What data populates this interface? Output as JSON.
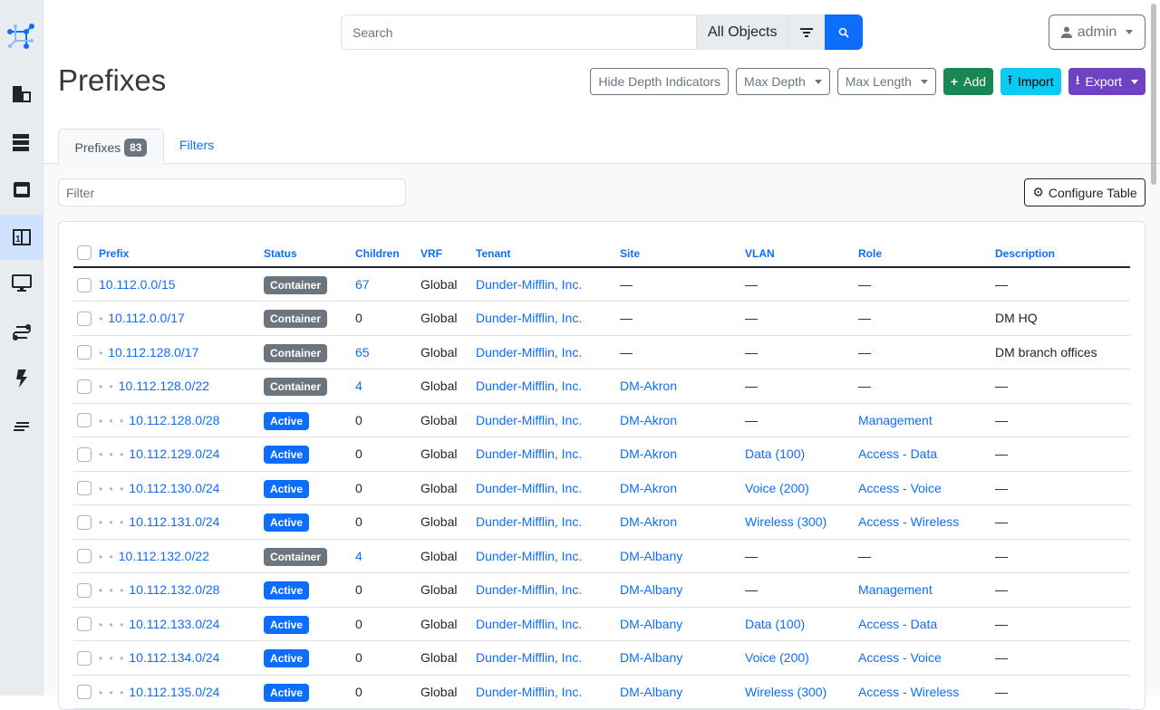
{
  "search": {
    "placeholder": "Search",
    "scope": "All Objects"
  },
  "user": {
    "name": "admin"
  },
  "page": {
    "title": "Prefixes"
  },
  "actions": {
    "hide_depth": "Hide Depth Indicators",
    "max_depth": "Max Depth",
    "max_length": "Max Length",
    "add": "Add",
    "import": "Import",
    "export": "Export"
  },
  "colors": {
    "add": "#198754",
    "import": "#0dcaf0",
    "export": "#6f42c1",
    "active": "#0d6efd",
    "container": "#6c757d"
  },
  "tabs": {
    "prefixes": "Prefixes",
    "count": "83",
    "filters": "Filters"
  },
  "filter": {
    "placeholder": "Filter"
  },
  "configure": "Configure Table",
  "table": {
    "headers": [
      "Prefix",
      "Status",
      "Children",
      "VRF",
      "Tenant",
      "Site",
      "VLAN",
      "Role",
      "Description"
    ],
    "rows": [
      {
        "depth": 0,
        "prefix": "10.112.0.0/15",
        "status": "Container",
        "children": "67",
        "vrf": "Global",
        "tenant": "Dunder-Mifflin, Inc.",
        "site": "—",
        "vlan": "—",
        "role": "—",
        "description": "—"
      },
      {
        "depth": 1,
        "prefix": "10.112.0.0/17",
        "status": "Container",
        "children": "0",
        "vrf": "Global",
        "tenant": "Dunder-Mifflin, Inc.",
        "site": "—",
        "vlan": "—",
        "role": "—",
        "description": "DM HQ"
      },
      {
        "depth": 1,
        "prefix": "10.112.128.0/17",
        "status": "Container",
        "children": "65",
        "vrf": "Global",
        "tenant": "Dunder-Mifflin, Inc.",
        "site": "—",
        "vlan": "—",
        "role": "—",
        "description": "DM branch offices"
      },
      {
        "depth": 2,
        "prefix": "10.112.128.0/22",
        "status": "Container",
        "children": "4",
        "vrf": "Global",
        "tenant": "Dunder-Mifflin, Inc.",
        "site": "DM-Akron",
        "vlan": "—",
        "role": "—",
        "description": "—"
      },
      {
        "depth": 3,
        "prefix": "10.112.128.0/28",
        "status": "Active",
        "children": "0",
        "vrf": "Global",
        "tenant": "Dunder-Mifflin, Inc.",
        "site": "DM-Akron",
        "vlan": "—",
        "role": "Management",
        "description": "—"
      },
      {
        "depth": 3,
        "prefix": "10.112.129.0/24",
        "status": "Active",
        "children": "0",
        "vrf": "Global",
        "tenant": "Dunder-Mifflin, Inc.",
        "site": "DM-Akron",
        "vlan": "Data (100)",
        "role": "Access - Data",
        "description": "—"
      },
      {
        "depth": 3,
        "prefix": "10.112.130.0/24",
        "status": "Active",
        "children": "0",
        "vrf": "Global",
        "tenant": "Dunder-Mifflin, Inc.",
        "site": "DM-Akron",
        "vlan": "Voice (200)",
        "role": "Access - Voice",
        "description": "—"
      },
      {
        "depth": 3,
        "prefix": "10.112.131.0/24",
        "status": "Active",
        "children": "0",
        "vrf": "Global",
        "tenant": "Dunder-Mifflin, Inc.",
        "site": "DM-Akron",
        "vlan": "Wireless (300)",
        "role": "Access - Wireless",
        "description": "—"
      },
      {
        "depth": 2,
        "prefix": "10.112.132.0/22",
        "status": "Container",
        "children": "4",
        "vrf": "Global",
        "tenant": "Dunder-Mifflin, Inc.",
        "site": "DM-Albany",
        "vlan": "—",
        "role": "—",
        "description": "—"
      },
      {
        "depth": 3,
        "prefix": "10.112.132.0/28",
        "status": "Active",
        "children": "0",
        "vrf": "Global",
        "tenant": "Dunder-Mifflin, Inc.",
        "site": "DM-Albany",
        "vlan": "—",
        "role": "Management",
        "description": "—"
      },
      {
        "depth": 3,
        "prefix": "10.112.133.0/24",
        "status": "Active",
        "children": "0",
        "vrf": "Global",
        "tenant": "Dunder-Mifflin, Inc.",
        "site": "DM-Albany",
        "vlan": "Data (100)",
        "role": "Access - Data",
        "description": "—"
      },
      {
        "depth": 3,
        "prefix": "10.112.134.0/24",
        "status": "Active",
        "children": "0",
        "vrf": "Global",
        "tenant": "Dunder-Mifflin, Inc.",
        "site": "DM-Albany",
        "vlan": "Voice (200)",
        "role": "Access - Voice",
        "description": "—"
      },
      {
        "depth": 3,
        "prefix": "10.112.135.0/24",
        "status": "Active",
        "children": "0",
        "vrf": "Global",
        "tenant": "Dunder-Mifflin, Inc.",
        "site": "DM-Albany",
        "vlan": "Wireless (300)",
        "role": "Access - Wireless",
        "description": "—"
      }
    ]
  }
}
